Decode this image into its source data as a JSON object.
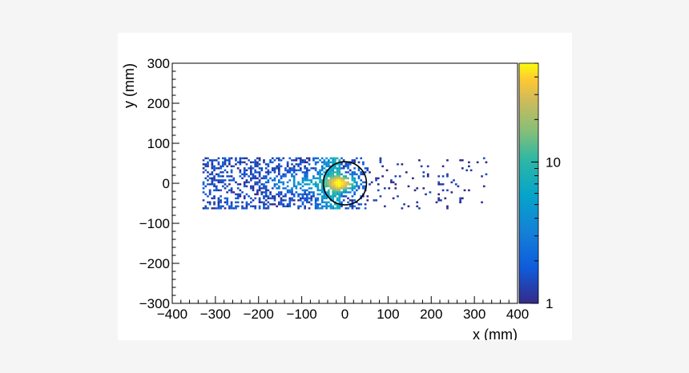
{
  "chart_data": {
    "type": "heatmap",
    "title": "",
    "xlabel": "x (mm)",
    "ylabel": "y (mm)",
    "xlim": [
      -400,
      400
    ],
    "ylim": [
      -300,
      300
    ],
    "x_ticks": [
      -400,
      -300,
      -200,
      -100,
      0,
      100,
      200,
      300,
      400
    ],
    "y_ticks": [
      -300,
      -200,
      -100,
      0,
      100,
      200,
      300
    ],
    "colorbar": {
      "scale": "log",
      "range": [
        1,
        50
      ],
      "tick_labels": [
        "1",
        "10"
      ],
      "tick_values": [
        1,
        10
      ]
    },
    "distribution": {
      "x_range": [
        -330,
        330
      ],
      "y_range": [
        -65,
        65
      ],
      "dense_region_x": [
        -330,
        -10
      ],
      "hotspot_center": [
        -10,
        0
      ],
      "hotspot_peak_count": 45
    },
    "overlay_circle": {
      "center": [
        0,
        0
      ],
      "radius": 50
    },
    "colors": {
      "frame": "#000000",
      "circle": "#000000",
      "palette_low": "#352a87",
      "palette_high": "#f9fb0e"
    }
  }
}
